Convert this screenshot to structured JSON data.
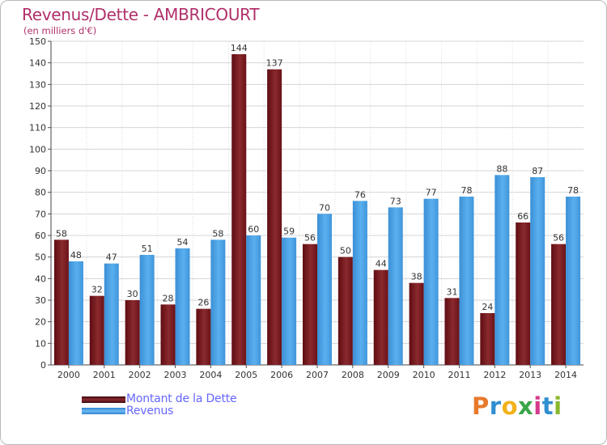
{
  "header": {
    "title": "Revenus/Dette - AMBRICOURT",
    "subtitle": "(en milliers d'€)"
  },
  "legend": {
    "items": [
      {
        "label": "Montant de la Dette",
        "color": "#7a1820"
      },
      {
        "label": "Revenus",
        "color": "#4aa3e6"
      }
    ]
  },
  "logo": {
    "letters": [
      "P",
      "r",
      "o",
      "x",
      "i",
      "t",
      "i"
    ],
    "colors": [
      "#e8792b",
      "#2f8ed0",
      "#f2b21c",
      "#3aa64a",
      "#d63a8c",
      "#2f8ed0",
      "#88b82b"
    ]
  },
  "chart_data": {
    "type": "bar",
    "categories": [
      "2000",
      "2001",
      "2002",
      "2003",
      "2004",
      "2005",
      "2006",
      "2007",
      "2008",
      "2009",
      "2010",
      "2011",
      "2012",
      "2013",
      "2014"
    ],
    "series": [
      {
        "name": "Montant de la Dette",
        "color": "#7a1820",
        "values": [
          58,
          32,
          30,
          28,
          26,
          144,
          137,
          56,
          50,
          44,
          38,
          31,
          24,
          66,
          56
        ]
      },
      {
        "name": "Revenus",
        "color": "#4aa3e6",
        "values": [
          48,
          47,
          51,
          54,
          58,
          60,
          59,
          70,
          76,
          73,
          77,
          78,
          88,
          87,
          78
        ]
      }
    ],
    "title": "Revenus/Dette - AMBRICOURT",
    "ylabel": "(en milliers d'€)",
    "xlabel": "",
    "ylim": [
      0,
      150
    ],
    "yticks": [
      "0",
      "10",
      "20",
      "30",
      "40",
      "50",
      "60",
      "70",
      "80",
      "90",
      "100",
      "110",
      "120",
      "130",
      "140",
      "150"
    ],
    "grid": true,
    "legend_position": "bottom-left"
  }
}
